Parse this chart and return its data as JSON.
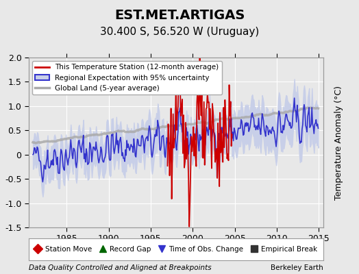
{
  "title": "EST.MET.ARTIGAS",
  "subtitle": "30.400 S, 56.520 W (Uruguay)",
  "ylabel": "Temperature Anomaly (°C)",
  "xlabel_left": "Data Quality Controlled and Aligned at Breakpoints",
  "xlabel_right": "Berkeley Earth",
  "ylim": [
    -1.5,
    2.0
  ],
  "xlim": [
    1980.5,
    2015.5
  ],
  "xticks": [
    1985,
    1990,
    1995,
    2000,
    2005,
    2010,
    2015
  ],
  "yticks": [
    -1.5,
    -1.0,
    -0.5,
    0.0,
    0.5,
    1.0,
    1.5,
    2.0
  ],
  "background_color": "#e8e8e8",
  "plot_bg_color": "#e8e8e8",
  "grid_color": "#ffffff",
  "regional_fill_color": "#c8cfe8",
  "regional_line_color": "#3333cc",
  "station_line_color": "#cc0000",
  "global_line_color": "#aaaaaa",
  "legend_labels": [
    "This Temperature Station (12-month average)",
    "Regional Expectation with 95% uncertainty",
    "Global Land (5-year average)"
  ],
  "bottom_legend": [
    {
      "marker": "D",
      "color": "#cc0000",
      "label": "Station Move"
    },
    {
      "marker": "^",
      "color": "#006600",
      "label": "Record Gap"
    },
    {
      "marker": "v",
      "color": "#3333cc",
      "label": "Time of Obs. Change"
    },
    {
      "marker": "s",
      "color": "#333333",
      "label": "Empirical Break"
    }
  ],
  "title_fontsize": 14,
  "subtitle_fontsize": 11,
  "tick_fontsize": 9,
  "label_fontsize": 9
}
